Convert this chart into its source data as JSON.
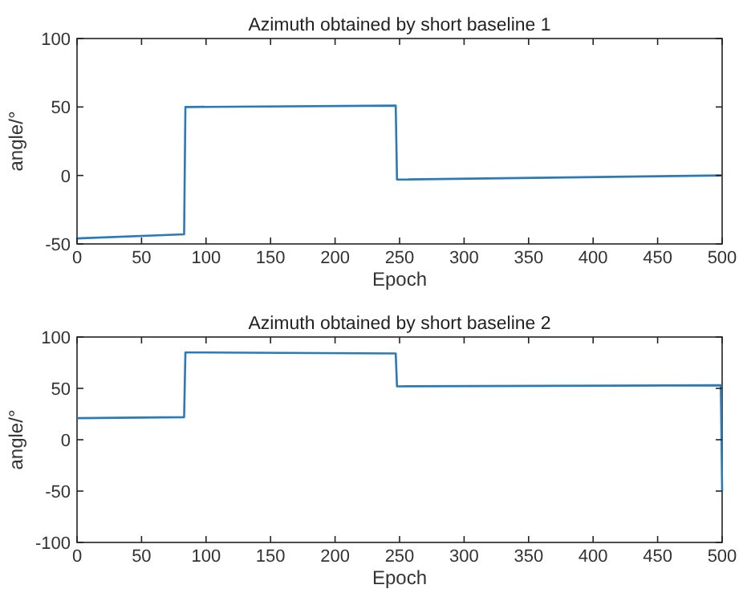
{
  "chart_data": [
    {
      "type": "line",
      "title": "Azimuth obtained by short baseline 1",
      "xlabel": "Epoch",
      "ylabel": "angle/°",
      "x": [
        0,
        83,
        84,
        247,
        248,
        500
      ],
      "series": [
        {
          "color": "#2a7ab8",
          "values": [
            -46,
            -43,
            50,
            51,
            -3,
            0
          ]
        }
      ],
      "xlim": [
        0,
        500
      ],
      "xticks": [
        0,
        50,
        100,
        150,
        200,
        250,
        300,
        350,
        400,
        450,
        500
      ],
      "ylim": [
        -50,
        100
      ],
      "yticks": [
        -50,
        0,
        50,
        100
      ],
      "grid": false
    },
    {
      "type": "line",
      "title": "Azimuth obtained by short baseline 2",
      "xlabel": "Epoch",
      "ylabel": "angle/°",
      "x": [
        0,
        83,
        84,
        247,
        248,
        499,
        500
      ],
      "series": [
        {
          "color": "#2a7ab8",
          "values": [
            21,
            22,
            85,
            84,
            52,
            53,
            -50
          ]
        }
      ],
      "xlim": [
        0,
        500
      ],
      "xticks": [
        0,
        50,
        100,
        150,
        200,
        250,
        300,
        350,
        400,
        450,
        500
      ],
      "ylim": [
        -100,
        100
      ],
      "yticks": [
        -100,
        -50,
        0,
        50,
        100
      ],
      "grid": false
    }
  ]
}
